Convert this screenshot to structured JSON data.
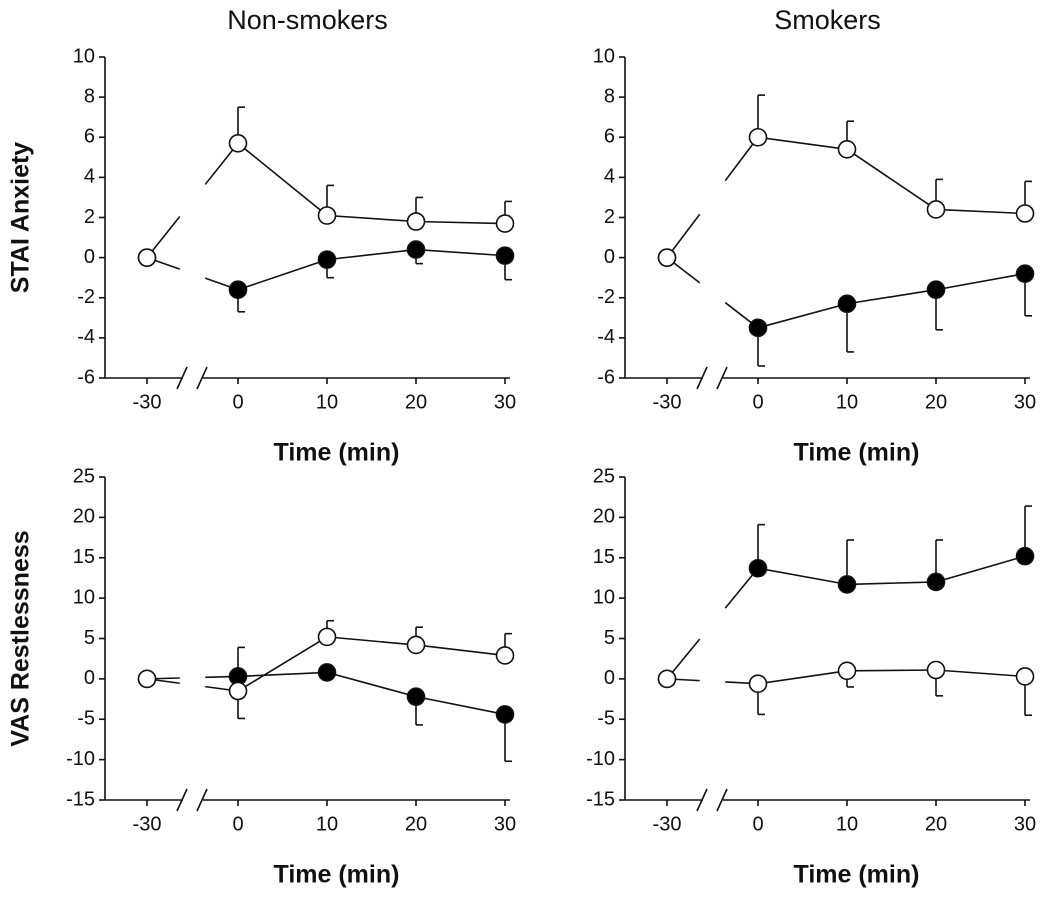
{
  "chart_data": [
    {
      "type": "line",
      "title": "Non-smokers",
      "ylabel": "STAI Anxiety",
      "xlabel": "Time (min)",
      "categories": [
        "-30",
        "0",
        "10",
        "20",
        "30"
      ],
      "ylim": [
        -6,
        10
      ],
      "yticks": [
        -6,
        -4,
        -2,
        0,
        2,
        4,
        6,
        8,
        10
      ],
      "series": [
        {
          "color": "#ffffff",
          "values": [
            0,
            5.7,
            2.1,
            1.8,
            1.7
          ],
          "errors": [
            null,
            1.8,
            1.5,
            1.2,
            1.1
          ]
        },
        {
          "color": "#000000",
          "values": [
            0,
            -1.6,
            -0.1,
            0.4,
            0.1
          ],
          "errors": [
            null,
            1.1,
            0.9,
            0.7,
            1.2
          ]
        }
      ]
    },
    {
      "type": "line",
      "title": "Smokers",
      "xlabel": "Time (min)",
      "categories": [
        "-30",
        "0",
        "10",
        "20",
        "30"
      ],
      "ylim": [
        -6,
        10
      ],
      "yticks": [
        -6,
        -4,
        -2,
        0,
        2,
        4,
        6,
        8,
        10
      ],
      "series": [
        {
          "color": "#ffffff",
          "values": [
            0,
            6.0,
            5.4,
            2.4,
            2.2
          ],
          "errors": [
            null,
            2.1,
            1.4,
            1.5,
            1.6
          ]
        },
        {
          "color": "#000000",
          "values": [
            0,
            -3.5,
            -2.3,
            -1.6,
            -0.8
          ],
          "errors": [
            null,
            1.9,
            2.4,
            2.0,
            2.1
          ]
        }
      ]
    },
    {
      "type": "line",
      "ylabel": "VAS Restlessness",
      "xlabel": "Time (min)",
      "categories": [
        "-30",
        "0",
        "10",
        "20",
        "30"
      ],
      "ylim": [
        -15,
        25
      ],
      "yticks": [
        -15,
        -10,
        -5,
        0,
        5,
        10,
        15,
        20,
        25
      ],
      "series": [
        {
          "color": "#ffffff",
          "values": [
            0,
            -1.5,
            5.2,
            4.2,
            2.9
          ],
          "errors": [
            null,
            3.4,
            2.0,
            2.2,
            2.7
          ]
        },
        {
          "color": "#000000",
          "values": [
            0,
            0.3,
            0.8,
            -2.2,
            -4.4
          ],
          "errors": [
            null,
            3.6,
            0.5,
            3.5,
            5.8
          ]
        }
      ]
    },
    {
      "type": "line",
      "xlabel": "Time (min)",
      "categories": [
        "-30",
        "0",
        "10",
        "20",
        "30"
      ],
      "ylim": [
        -15,
        25
      ],
      "yticks": [
        -15,
        -10,
        -5,
        0,
        5,
        10,
        15,
        20,
        25
      ],
      "series": [
        {
          "color": "#ffffff",
          "values": [
            0,
            -0.6,
            1.0,
            1.1,
            0.3
          ],
          "errors": [
            null,
            3.8,
            2.0,
            3.2,
            4.8
          ]
        },
        {
          "color": "#000000",
          "values": [
            0,
            13.7,
            11.7,
            12.0,
            15.2
          ],
          "errors": [
            null,
            5.4,
            5.5,
            5.2,
            6.2
          ]
        }
      ]
    }
  ]
}
